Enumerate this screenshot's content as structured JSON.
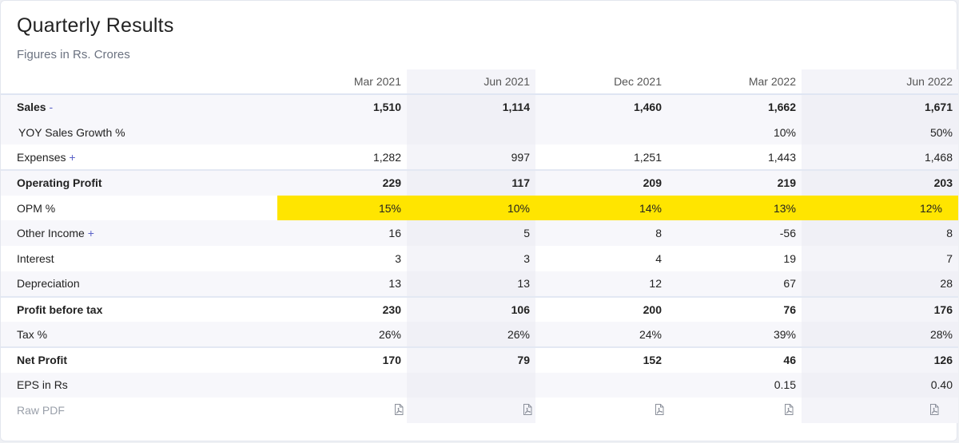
{
  "header": {
    "title": "Quarterly Results",
    "subtitle": "Figures in Rs. Crores"
  },
  "columns": [
    "Mar 2021",
    "Jun 2021",
    "Dec 2021",
    "Mar 2022",
    "Jun 2022"
  ],
  "rows": [
    {
      "label": "Sales",
      "toggle": "-",
      "values": [
        "1,510",
        "1,114",
        "1,460",
        "1,662",
        "1,671"
      ]
    },
    {
      "label": "YOY Sales Growth %",
      "values": [
        "",
        "",
        "",
        "10%",
        "50%"
      ]
    },
    {
      "label": "Expenses",
      "toggle": "+",
      "values": [
        "1,282",
        "997",
        "1,251",
        "1,443",
        "1,468"
      ]
    },
    {
      "label": "Operating Profit",
      "values": [
        "229",
        "117",
        "209",
        "219",
        "203"
      ]
    },
    {
      "label": "OPM %",
      "values": [
        "15%",
        "10%",
        "14%",
        "13%",
        "12%"
      ]
    },
    {
      "label": "Other Income",
      "toggle": "+",
      "values": [
        "16",
        "5",
        "8",
        "-56",
        "8"
      ]
    },
    {
      "label": "Interest",
      "values": [
        "3",
        "3",
        "4",
        "19",
        "7"
      ]
    },
    {
      "label": "Depreciation",
      "values": [
        "13",
        "13",
        "12",
        "67",
        "28"
      ]
    },
    {
      "label": "Profit before tax",
      "values": [
        "230",
        "106",
        "200",
        "76",
        "176"
      ]
    },
    {
      "label": "Tax %",
      "values": [
        "26%",
        "26%",
        "24%",
        "39%",
        "28%"
      ]
    },
    {
      "label": "Net Profit",
      "values": [
        "170",
        "79",
        "152",
        "46",
        "126"
      ]
    },
    {
      "label": "EPS in Rs",
      "values": [
        "",
        "",
        "",
        "0.15",
        "0.40"
      ]
    },
    {
      "label": "Raw PDF",
      "values": []
    }
  ],
  "icons": {
    "pdf": "pdf-file-icon"
  },
  "colors": {
    "highlight": "#ffe500",
    "accent": "#5a62c8"
  }
}
